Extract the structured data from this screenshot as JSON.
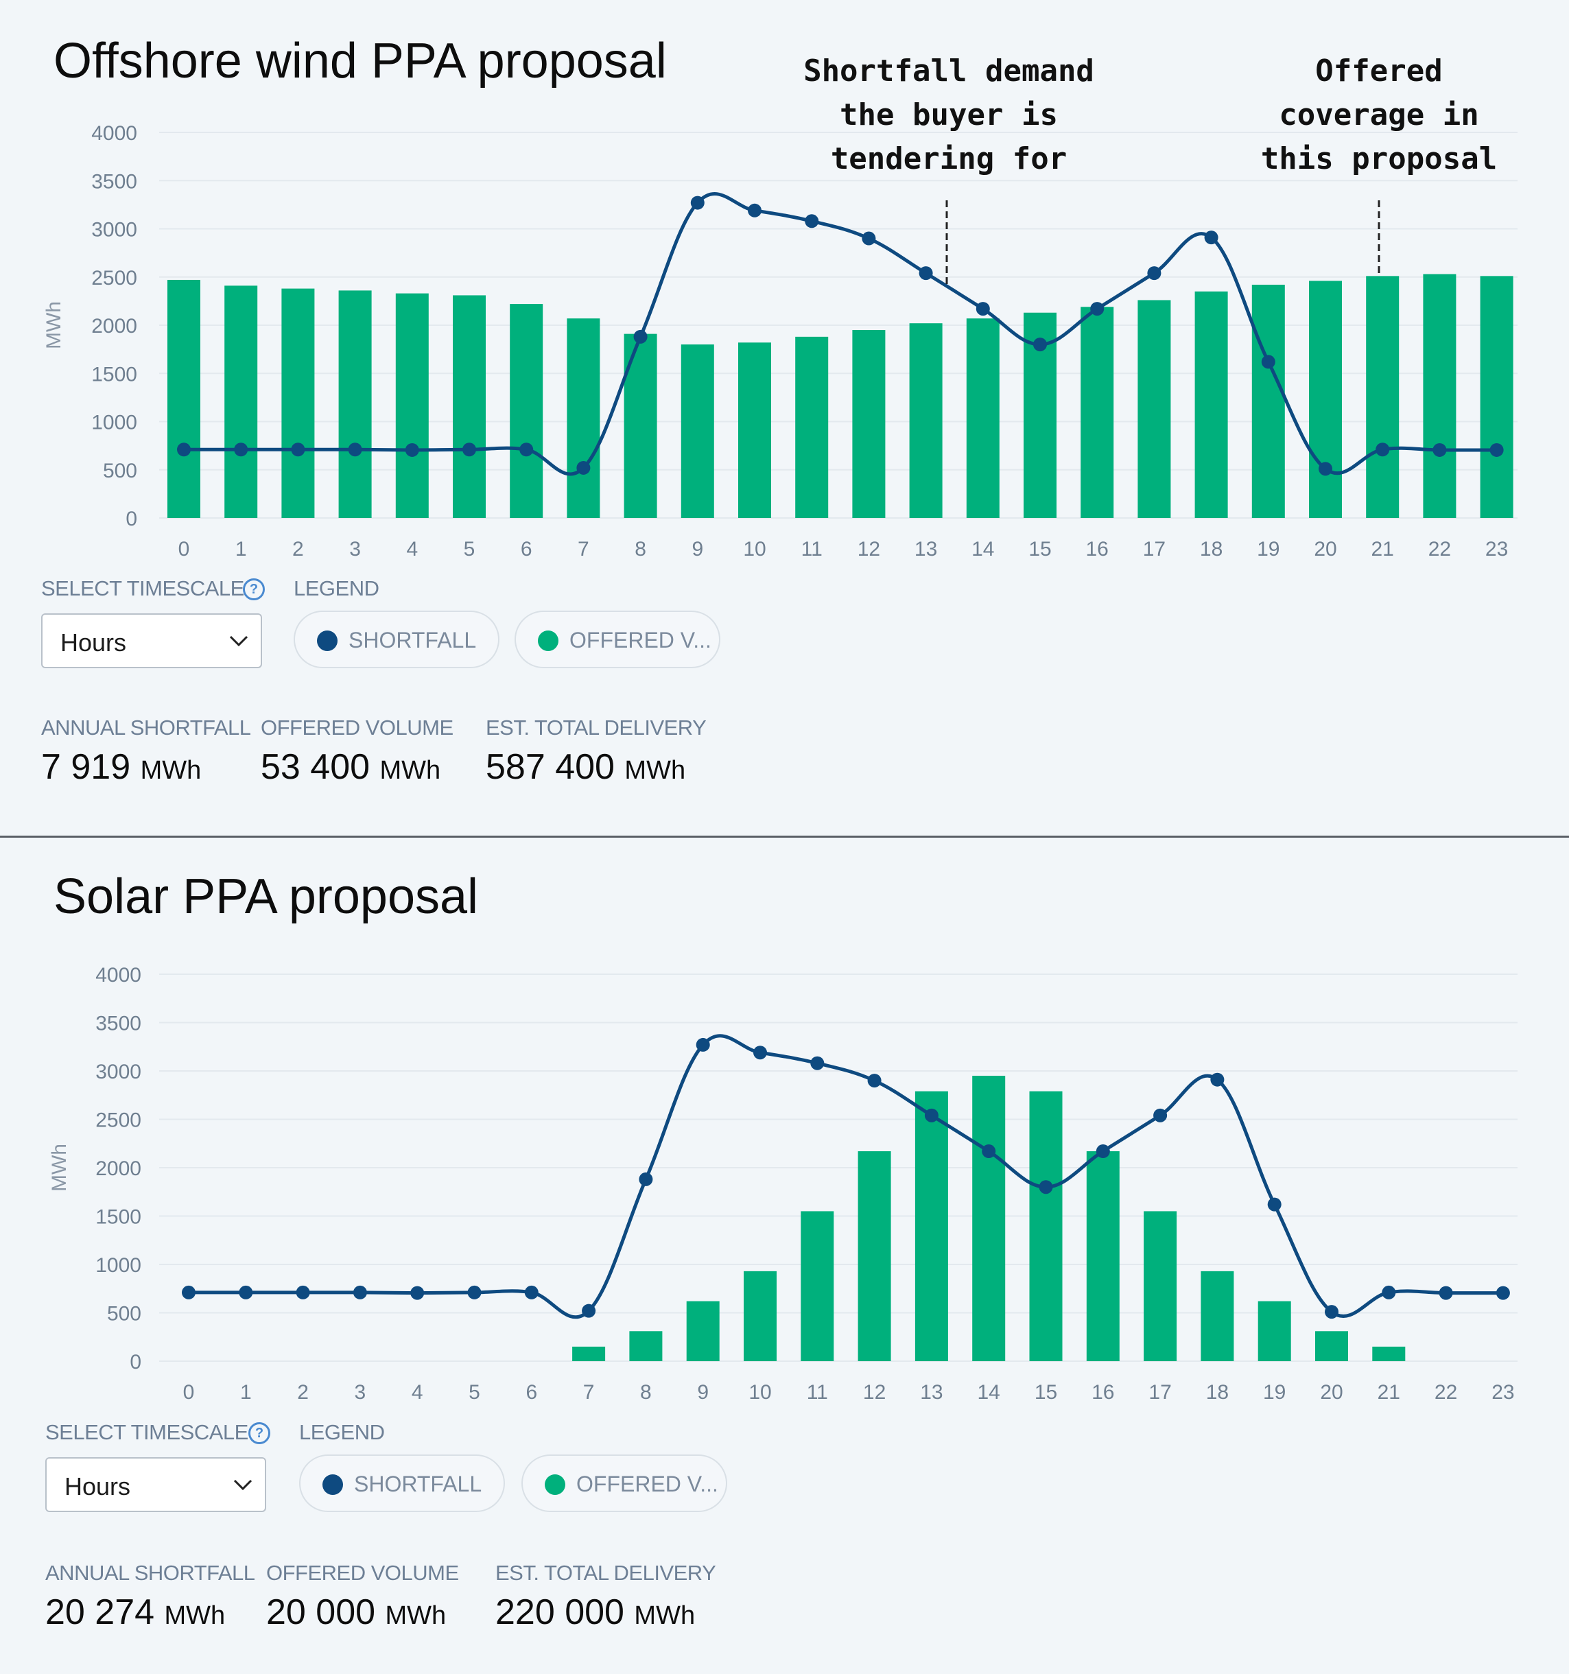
{
  "colors": {
    "shortfall": "#0e4a80",
    "offered": "#00b07c",
    "grid": "#e3e9ee",
    "axis_text": "#6f7f90"
  },
  "annotations": {
    "shortfall": "Shortfall demand\nthe buyer is\ntendering for",
    "offered": "Offered\ncoverage in\nthis proposal"
  },
  "panels": [
    {
      "title": "Offshore wind PPA proposal",
      "timescale": {
        "label": "SELECT TIMESCALE",
        "help_icon": "question-circle-icon",
        "value": "Hours"
      },
      "legend": {
        "label": "LEGEND",
        "items": [
          {
            "text": "SHORTFALL"
          },
          {
            "text": "OFFERED V..."
          }
        ]
      },
      "stats": [
        {
          "label": "ANNUAL SHORTFALL",
          "value": "7 919",
          "unit": "MWh"
        },
        {
          "label": "OFFERED VOLUME",
          "value": "53 400",
          "unit": "MWh"
        },
        {
          "label": "EST. TOTAL DELIVERY",
          "value": "587 400",
          "unit": "MWh"
        }
      ]
    },
    {
      "title": "Solar PPA proposal",
      "timescale": {
        "label": "SELECT TIMESCALE",
        "help_icon": "question-circle-icon",
        "value": "Hours"
      },
      "legend": {
        "label": "LEGEND",
        "items": [
          {
            "text": "SHORTFALL"
          },
          {
            "text": "OFFERED V..."
          }
        ]
      },
      "stats": [
        {
          "label": "ANNUAL SHORTFALL",
          "value": "20 274",
          "unit": "MWh"
        },
        {
          "label": "OFFERED VOLUME",
          "value": "20 000",
          "unit": "MWh"
        },
        {
          "label": "EST. TOTAL DELIVERY",
          "value": "220 000",
          "unit": "MWh"
        }
      ]
    }
  ],
  "chart_data": [
    {
      "type": "bar+line",
      "title": "Offshore wind PPA proposal",
      "ylabel": "MWh",
      "ylim": [
        0,
        4000
      ],
      "yticks": [
        0,
        500,
        1000,
        1500,
        2000,
        2500,
        3000,
        3500,
        4000
      ],
      "categories": [
        "0",
        "1",
        "2",
        "3",
        "4",
        "5",
        "6",
        "7",
        "8",
        "9",
        "10",
        "11",
        "12",
        "13",
        "14",
        "15",
        "16",
        "17",
        "18",
        "19",
        "20",
        "21",
        "22",
        "23"
      ],
      "series": [
        {
          "name": "SHORTFALL",
          "type": "line",
          "values": [
            710,
            710,
            710,
            710,
            705,
            710,
            710,
            520,
            1880,
            3270,
            3190,
            3080,
            2900,
            2540,
            2170,
            1800,
            2170,
            2540,
            2910,
            1620,
            510,
            710,
            705,
            705
          ]
        },
        {
          "name": "OFFERED V...",
          "type": "bar",
          "values": [
            2470,
            2410,
            2380,
            2360,
            2330,
            2310,
            2220,
            2070,
            1910,
            1800,
            1820,
            1880,
            1950,
            2020,
            2070,
            2130,
            2190,
            2260,
            2350,
            2420,
            2460,
            2510,
            2530,
            2510
          ]
        }
      ]
    },
    {
      "type": "bar+line",
      "title": "Solar PPA proposal",
      "ylabel": "MWh",
      "ylim": [
        0,
        4000
      ],
      "yticks": [
        0,
        500,
        1000,
        1500,
        2000,
        2500,
        3000,
        3500,
        4000
      ],
      "categories": [
        "0",
        "1",
        "2",
        "3",
        "4",
        "5",
        "6",
        "7",
        "8",
        "9",
        "10",
        "11",
        "12",
        "13",
        "14",
        "15",
        "16",
        "17",
        "18",
        "19",
        "20",
        "21",
        "22",
        "23"
      ],
      "series": [
        {
          "name": "SHORTFALL",
          "type": "line",
          "values": [
            710,
            710,
            710,
            710,
            705,
            710,
            710,
            520,
            1880,
            3270,
            3190,
            3080,
            2900,
            2540,
            2170,
            1800,
            2170,
            2540,
            2910,
            1620,
            510,
            710,
            705,
            705
          ]
        },
        {
          "name": "OFFERED V...",
          "type": "bar",
          "values": [
            0,
            0,
            0,
            0,
            0,
            0,
            0,
            150,
            310,
            620,
            930,
            1550,
            2170,
            2790,
            2950,
            2790,
            2170,
            1550,
            930,
            620,
            310,
            150,
            0,
            0
          ]
        }
      ]
    }
  ]
}
